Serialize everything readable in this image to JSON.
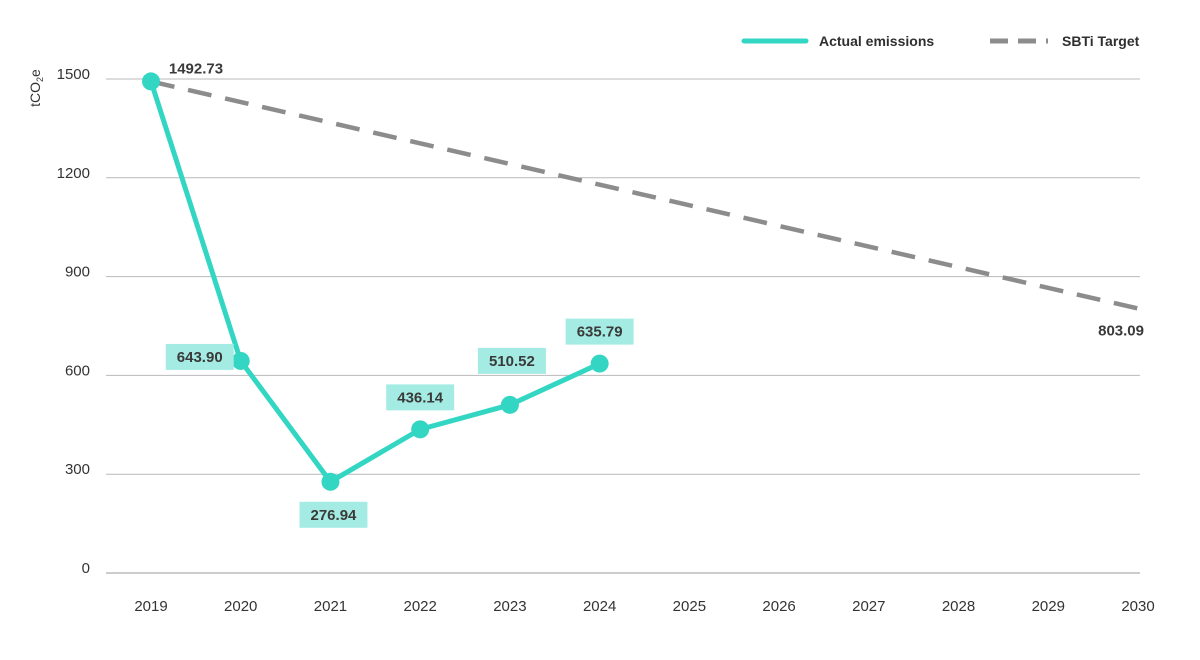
{
  "chart_data": {
    "type": "line",
    "ylabel_main": "tCO",
    "ylabel_sub": "2",
    "ylabel_tail": "e",
    "ylim": [
      0,
      1500
    ],
    "yticks": [
      0,
      300,
      600,
      900,
      1200,
      1500
    ],
    "ytick_labels": [
      "0",
      "300",
      "600",
      "900",
      "1200",
      "1500"
    ],
    "categories": [
      "2019",
      "2020",
      "2021",
      "2022",
      "2023",
      "2024",
      "2025",
      "2026",
      "2027",
      "2028",
      "2029",
      "2030"
    ],
    "grid": "horizontal",
    "legend_position": "top-right",
    "series": [
      {
        "name": "Actual emissions",
        "style": "solid",
        "color": "#33d6c2",
        "x": [
          "2019",
          "2020",
          "2021",
          "2022",
          "2023",
          "2024"
        ],
        "values": [
          1492.73,
          643.9,
          276.94,
          436.14,
          510.52,
          635.79
        ],
        "labels": [
          "1492.73",
          "643.90",
          "276.94",
          "436.14",
          "510.52",
          "635.79"
        ]
      },
      {
        "name": "SBTi Target",
        "style": "dashed",
        "color": "#8c8c8c",
        "x": [
          "2019",
          "2030"
        ],
        "values": [
          1492.73,
          803.09
        ],
        "labels": [
          "",
          "803.09"
        ]
      }
    ],
    "label_highlight_color": "#a4ece3"
  }
}
